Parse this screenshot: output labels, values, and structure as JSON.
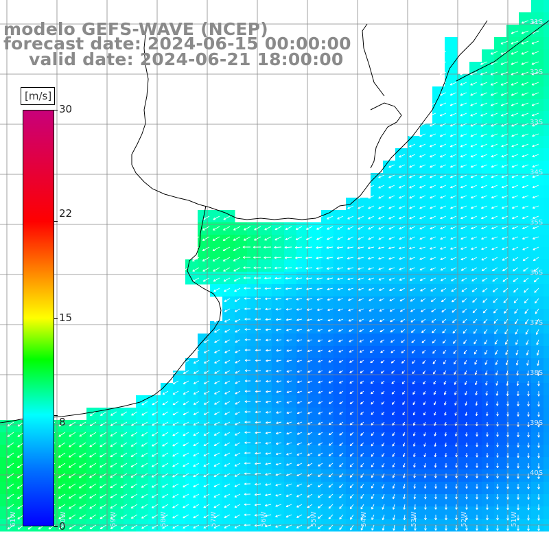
{
  "title": {
    "line1": "modelo GEFS-WAVE (NCEP)",
    "line2": "forecast date: 2024-06-15 00:00:00",
    "line3": "valid date: 2024-06-21 18:00:00"
  },
  "colorbar": {
    "unit": "[m/s]",
    "min": 0,
    "max": 30,
    "ticks": [
      "30",
      "22",
      "15",
      "8",
      "0"
    ],
    "tick_values": [
      30,
      22,
      15,
      8,
      0
    ],
    "stops": [
      {
        "value": 0,
        "color": "#0000ff"
      },
      {
        "value": 4,
        "color": "#0070ff"
      },
      {
        "value": 8,
        "color": "#00ffff"
      },
      {
        "value": 12,
        "color": "#00ff00"
      },
      {
        "value": 15,
        "color": "#ffff00"
      },
      {
        "value": 22,
        "color": "#ff0000"
      },
      {
        "value": 30,
        "color": "#c8007a"
      }
    ]
  },
  "grid": {
    "lat_labels": [
      "31S",
      "32S",
      "33S",
      "34S",
      "35S",
      "36S",
      "37S",
      "38S",
      "39S",
      "40S"
    ],
    "lon_labels": [
      "61W",
      "60W",
      "59W",
      "58W",
      "57W",
      "56W",
      "55W",
      "54W",
      "53W",
      "52W",
      "51W"
    ]
  },
  "colors": {
    "title": "#8a8a8a",
    "coast": "#000000",
    "gridline": "#888888",
    "arrows": "#ffffff",
    "land": "#ffffff"
  }
}
